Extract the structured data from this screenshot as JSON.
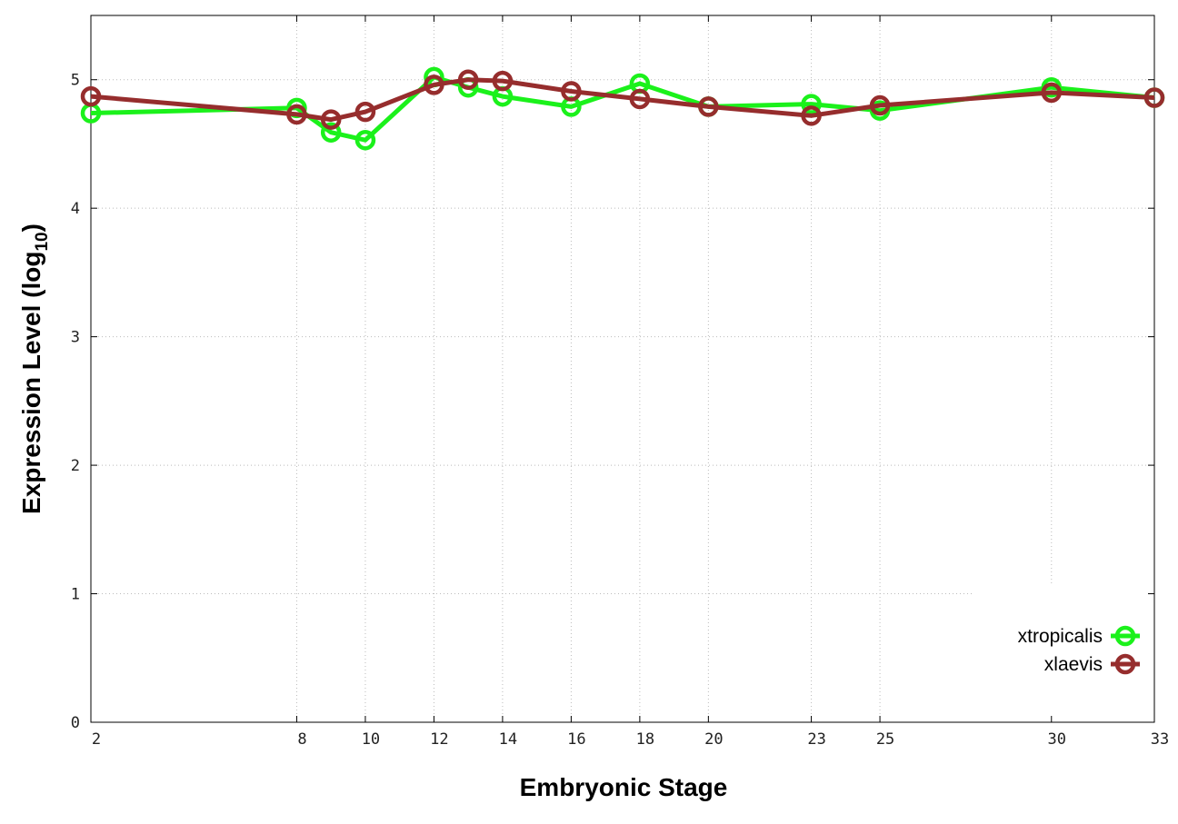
{
  "chart_data": {
    "type": "line",
    "title": "",
    "xlabel": "Embryonic Stage",
    "ylabel_main": "Expression Level (log",
    "ylabel_sub": "10",
    "ylabel_close": ")",
    "xlim": [
      2,
      33
    ],
    "ylim": [
      0,
      5.5
    ],
    "x_ticks": [
      2,
      8,
      10,
      12,
      14,
      16,
      18,
      20,
      23,
      25,
      30,
      33
    ],
    "x_tick_labels": [
      "2",
      "8",
      "10",
      "12",
      "14",
      "16",
      "18",
      "20",
      "23",
      "25",
      "30",
      "33"
    ],
    "y_ticks": [
      0,
      1,
      2,
      3,
      4,
      5
    ],
    "y_tick_labels": [
      "0",
      "1",
      "2",
      "3",
      "4",
      "5"
    ],
    "grid": true,
    "legend_position": "bottom-right",
    "series": [
      {
        "name": "xtropicalis",
        "color": "#1bf11b",
        "x": [
          2,
          8,
          9,
          10,
          12,
          13,
          14,
          16,
          18,
          20,
          23,
          25,
          30,
          33
        ],
        "y": [
          4.74,
          4.78,
          4.59,
          4.53,
          5.02,
          4.94,
          4.87,
          4.79,
          4.97,
          4.79,
          4.81,
          4.76,
          4.94,
          4.86
        ]
      },
      {
        "name": "xlaevis",
        "color": "#962d2d",
        "x": [
          2,
          8,
          9,
          10,
          12,
          13,
          14,
          16,
          18,
          20,
          23,
          25,
          30,
          33
        ],
        "y": [
          4.87,
          4.73,
          4.69,
          4.75,
          4.96,
          5.0,
          4.99,
          4.91,
          4.85,
          4.79,
          4.72,
          4.8,
          4.9,
          4.86
        ]
      }
    ]
  }
}
